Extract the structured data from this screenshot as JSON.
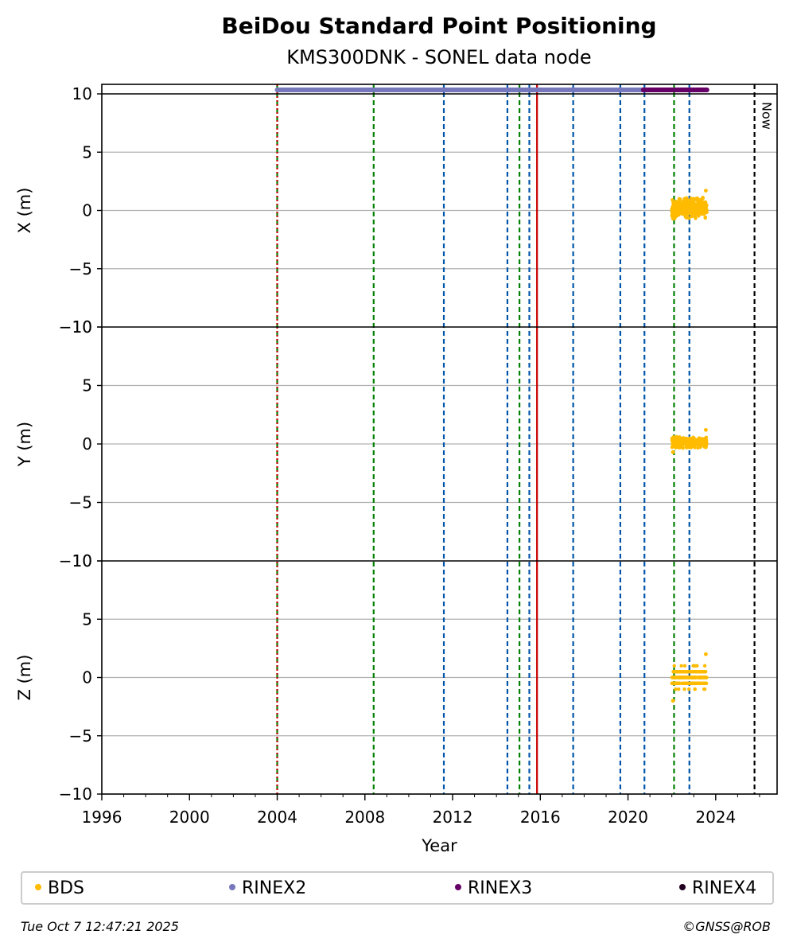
{
  "chart_data": {
    "type": "scatter",
    "title": "BeiDou Standard Point Positioning",
    "subtitle": "KMS300DNK - SONEL data node",
    "xlabel": "Year",
    "xlim": [
      1996,
      2026.8
    ],
    "x_ticks": [
      "1996",
      "2000",
      "2004",
      "2008",
      "2012",
      "2016",
      "2020",
      "2024"
    ],
    "panels": [
      {
        "ylabel": "X (m)",
        "ylim": [
          -10,
          10
        ],
        "y_ticks": [
          "−10",
          "−5",
          "0",
          "5",
          "10"
        ]
      },
      {
        "ylabel": "Y (m)",
        "ylim": [
          -10,
          10
        ],
        "y_ticks": [
          "−10",
          "−5",
          "0",
          "5",
          "10"
        ]
      },
      {
        "ylabel": "Z (m)",
        "ylim": [
          -10,
          10
        ],
        "y_ticks": [
          "−10",
          "−5",
          "0",
          "5",
          "10"
        ]
      }
    ],
    "grid": true,
    "data_availability": [
      {
        "series": "RINEX2",
        "start": 2004.0,
        "end": 2020.7,
        "color": "#7777bb"
      },
      {
        "series": "RINEX3",
        "start": 2020.7,
        "end": 2023.6,
        "color": "#660066"
      }
    ],
    "event_lines": [
      {
        "x": 2004.0,
        "color": "#008000",
        "style": "dashed"
      },
      {
        "x": 2004.0,
        "color": "#cc0000",
        "style": "dotted"
      },
      {
        "x": 2008.4,
        "color": "#008000",
        "style": "dashed"
      },
      {
        "x": 2011.6,
        "color": "#0055aa",
        "style": "dashed"
      },
      {
        "x": 2014.5,
        "color": "#0055aa",
        "style": "dashed"
      },
      {
        "x": 2015.05,
        "color": "#008000",
        "style": "dashed"
      },
      {
        "x": 2015.5,
        "color": "#0055aa",
        "style": "dashed"
      },
      {
        "x": 2015.85,
        "color": "#cc0000",
        "style": "solid"
      },
      {
        "x": 2017.5,
        "color": "#0055aa",
        "style": "dashed"
      },
      {
        "x": 2019.65,
        "color": "#0055aa",
        "style": "dashed"
      },
      {
        "x": 2020.75,
        "color": "#0055aa",
        "style": "dashed"
      },
      {
        "x": 2022.1,
        "color": "#008000",
        "style": "dashed"
      },
      {
        "x": 2022.8,
        "color": "#0055aa",
        "style": "dashed"
      },
      {
        "x": 2025.77,
        "color": "#000000",
        "style": "dashed"
      }
    ],
    "now_label": "Now",
    "series": [
      {
        "name": "BDS",
        "color": "#ffbb00",
        "x_range": [
          2022.0,
          2023.6
        ],
        "X": {
          "center": 0.2,
          "spread": 0.7,
          "min": -0.7,
          "max": 1.7
        },
        "Y": {
          "center": 0.1,
          "spread": 0.4,
          "min": -0.7,
          "max": 1.2
        },
        "Z": {
          "center": 0.0,
          "spread": 0.8,
          "min": -2.0,
          "max": 2.0
        }
      }
    ],
    "legend": [
      {
        "name": "BDS",
        "color": "#ffbb00"
      },
      {
        "name": "RINEX2",
        "color": "#7777bb"
      },
      {
        "name": "RINEX3",
        "color": "#660066"
      },
      {
        "name": "RINEX4",
        "color": "#220022"
      }
    ],
    "legend_position": "bottom"
  },
  "footer": {
    "timestamp": "Tue Oct  7 12:47:21 2025",
    "credit": "©GNSS@ROB"
  }
}
